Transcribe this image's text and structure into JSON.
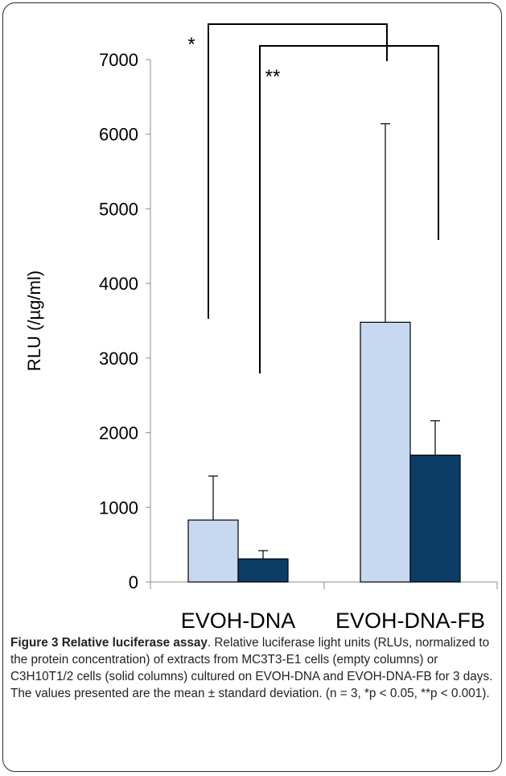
{
  "chart_data": {
    "type": "bar",
    "categories": [
      "EVOH-DNA",
      "EVOH-DNA-FB"
    ],
    "series": [
      {
        "values": [
          830,
          3480
        ],
        "errors": [
          590,
          2660
        ],
        "color": "#c6d9f1"
      },
      {
        "values": [
          310,
          1700
        ],
        "errors": [
          110,
          460
        ],
        "color": "#0b3d66"
      }
    ],
    "ylabel": "RLU (/µg/ml)",
    "ylim": [
      0,
      7000
    ],
    "yticks": [
      0,
      1000,
      2000,
      3000,
      4000,
      5000,
      6000,
      7000
    ],
    "significance": [
      {
        "label": "*",
        "from_series": 0,
        "left_category": 0,
        "right_category": 1
      },
      {
        "label": "**",
        "from_series": 1,
        "left_category": 0,
        "right_category": 1
      }
    ]
  },
  "caption": {
    "title": "Figure 3 Relative luciferase assay",
    "text": ". Relative luciferase light units (RLUs, normalized to the protein concentration) of extracts from MC3T3-E1 cells (empty columns) or C3H10T1/2 cells (solid columns) cultured on EVOH-DNA and EVOH-DNA-FB for 3 days. The values presented are the mean ± standard deviation. (n = 3, *p < 0.05, **p < 0.001)."
  }
}
